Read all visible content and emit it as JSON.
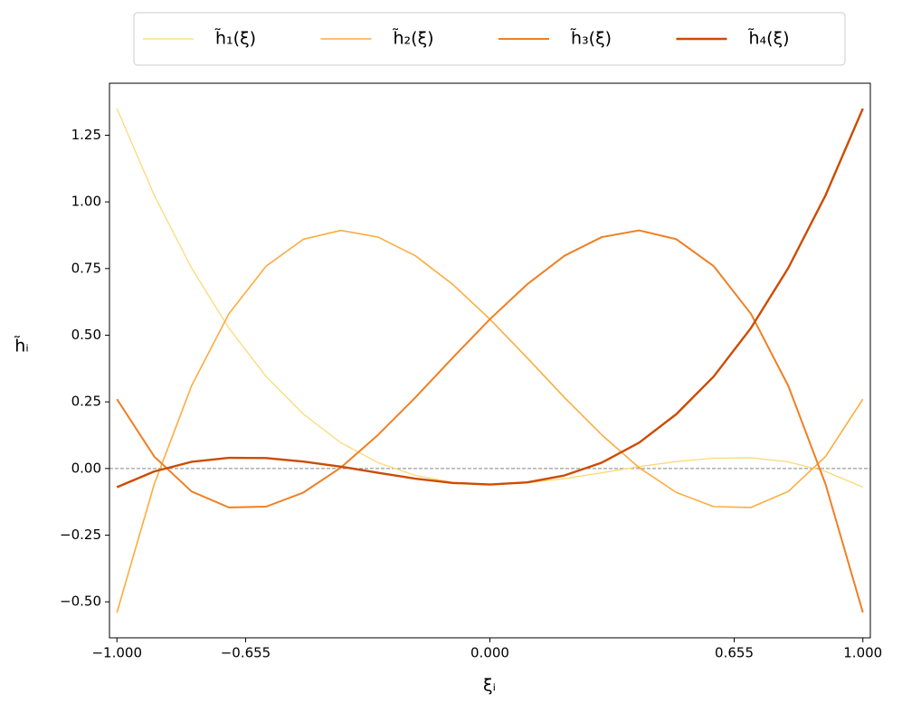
{
  "chart_data": {
    "type": "line",
    "xlabel": "ξᵢ",
    "ylabel": "h̃ᵢ",
    "x": [
      -1,
      -0.9,
      -0.8,
      -0.7,
      -0.6,
      -0.5,
      -0.4,
      -0.3,
      -0.2,
      -0.1,
      0,
      0.1,
      0.2,
      0.3,
      0.4,
      0.5,
      0.6,
      0.7,
      0.8,
      0.9,
      1
    ],
    "series": [
      {
        "name": "h̃₁(ξ)",
        "color": "#fdd976",
        "width": 1.3,
        "values": [
          1.35,
          1.025,
          0.752,
          0.527,
          0.345,
          0.204,
          0.097,
          0.022,
          -0.026,
          -0.052,
          -0.06,
          -0.054,
          -0.038,
          -0.016,
          0.007,
          0.026,
          0.039,
          0.04,
          0.025,
          -0.011,
          -0.07
        ]
      },
      {
        "name": "h̃₂(ξ)",
        "color": "#fdac3e",
        "width": 1.6,
        "values": [
          -0.54,
          -0.059,
          0.31,
          0.58,
          0.759,
          0.86,
          0.893,
          0.868,
          0.798,
          0.691,
          0.56,
          0.415,
          0.266,
          0.126,
          0.003,
          -0.09,
          -0.143,
          -0.146,
          -0.086,
          0.045,
          0.26
        ]
      },
      {
        "name": "h̃₃(ξ)",
        "color": "#f07f23",
        "width": 2.0,
        "values": [
          0.26,
          0.045,
          -0.086,
          -0.146,
          -0.143,
          -0.09,
          0.003,
          0.126,
          0.266,
          0.415,
          0.56,
          0.691,
          0.798,
          0.868,
          0.893,
          0.86,
          0.759,
          0.58,
          0.31,
          -0.059,
          -0.54
        ]
      },
      {
        "name": "h̃₄(ξ)",
        "color": "#cc4c02",
        "width": 2.4,
        "values": [
          -0.07,
          -0.011,
          0.025,
          0.04,
          0.039,
          0.026,
          0.007,
          -0.016,
          -0.038,
          -0.054,
          -0.06,
          -0.052,
          -0.026,
          0.022,
          0.097,
          0.204,
          0.345,
          0.527,
          0.752,
          1.025,
          1.35
        ]
      }
    ],
    "xlim": [
      -1.02,
      1.02
    ],
    "ylim": [
      -0.635,
      1.445
    ],
    "xticks": [
      {
        "value": -1,
        "label": "−1.000"
      },
      {
        "value": -0.655,
        "label": "−0.655"
      },
      {
        "value": 0,
        "label": "0.000"
      },
      {
        "value": 0.655,
        "label": "0.655"
      },
      {
        "value": 1,
        "label": "1.000"
      }
    ],
    "yticks": [
      {
        "value": -0.5,
        "label": "−0.50"
      },
      {
        "value": -0.25,
        "label": "−0.25"
      },
      {
        "value": 0,
        "label": "0.00"
      },
      {
        "value": 0.25,
        "label": "0.25"
      },
      {
        "value": 0.5,
        "label": "0.50"
      },
      {
        "value": 0.75,
        "label": "0.75"
      },
      {
        "value": 1,
        "label": "1.00"
      },
      {
        "value": 1.25,
        "label": "1.25"
      }
    ],
    "hline": 0,
    "hline_color": "#888888",
    "legend": "top"
  }
}
